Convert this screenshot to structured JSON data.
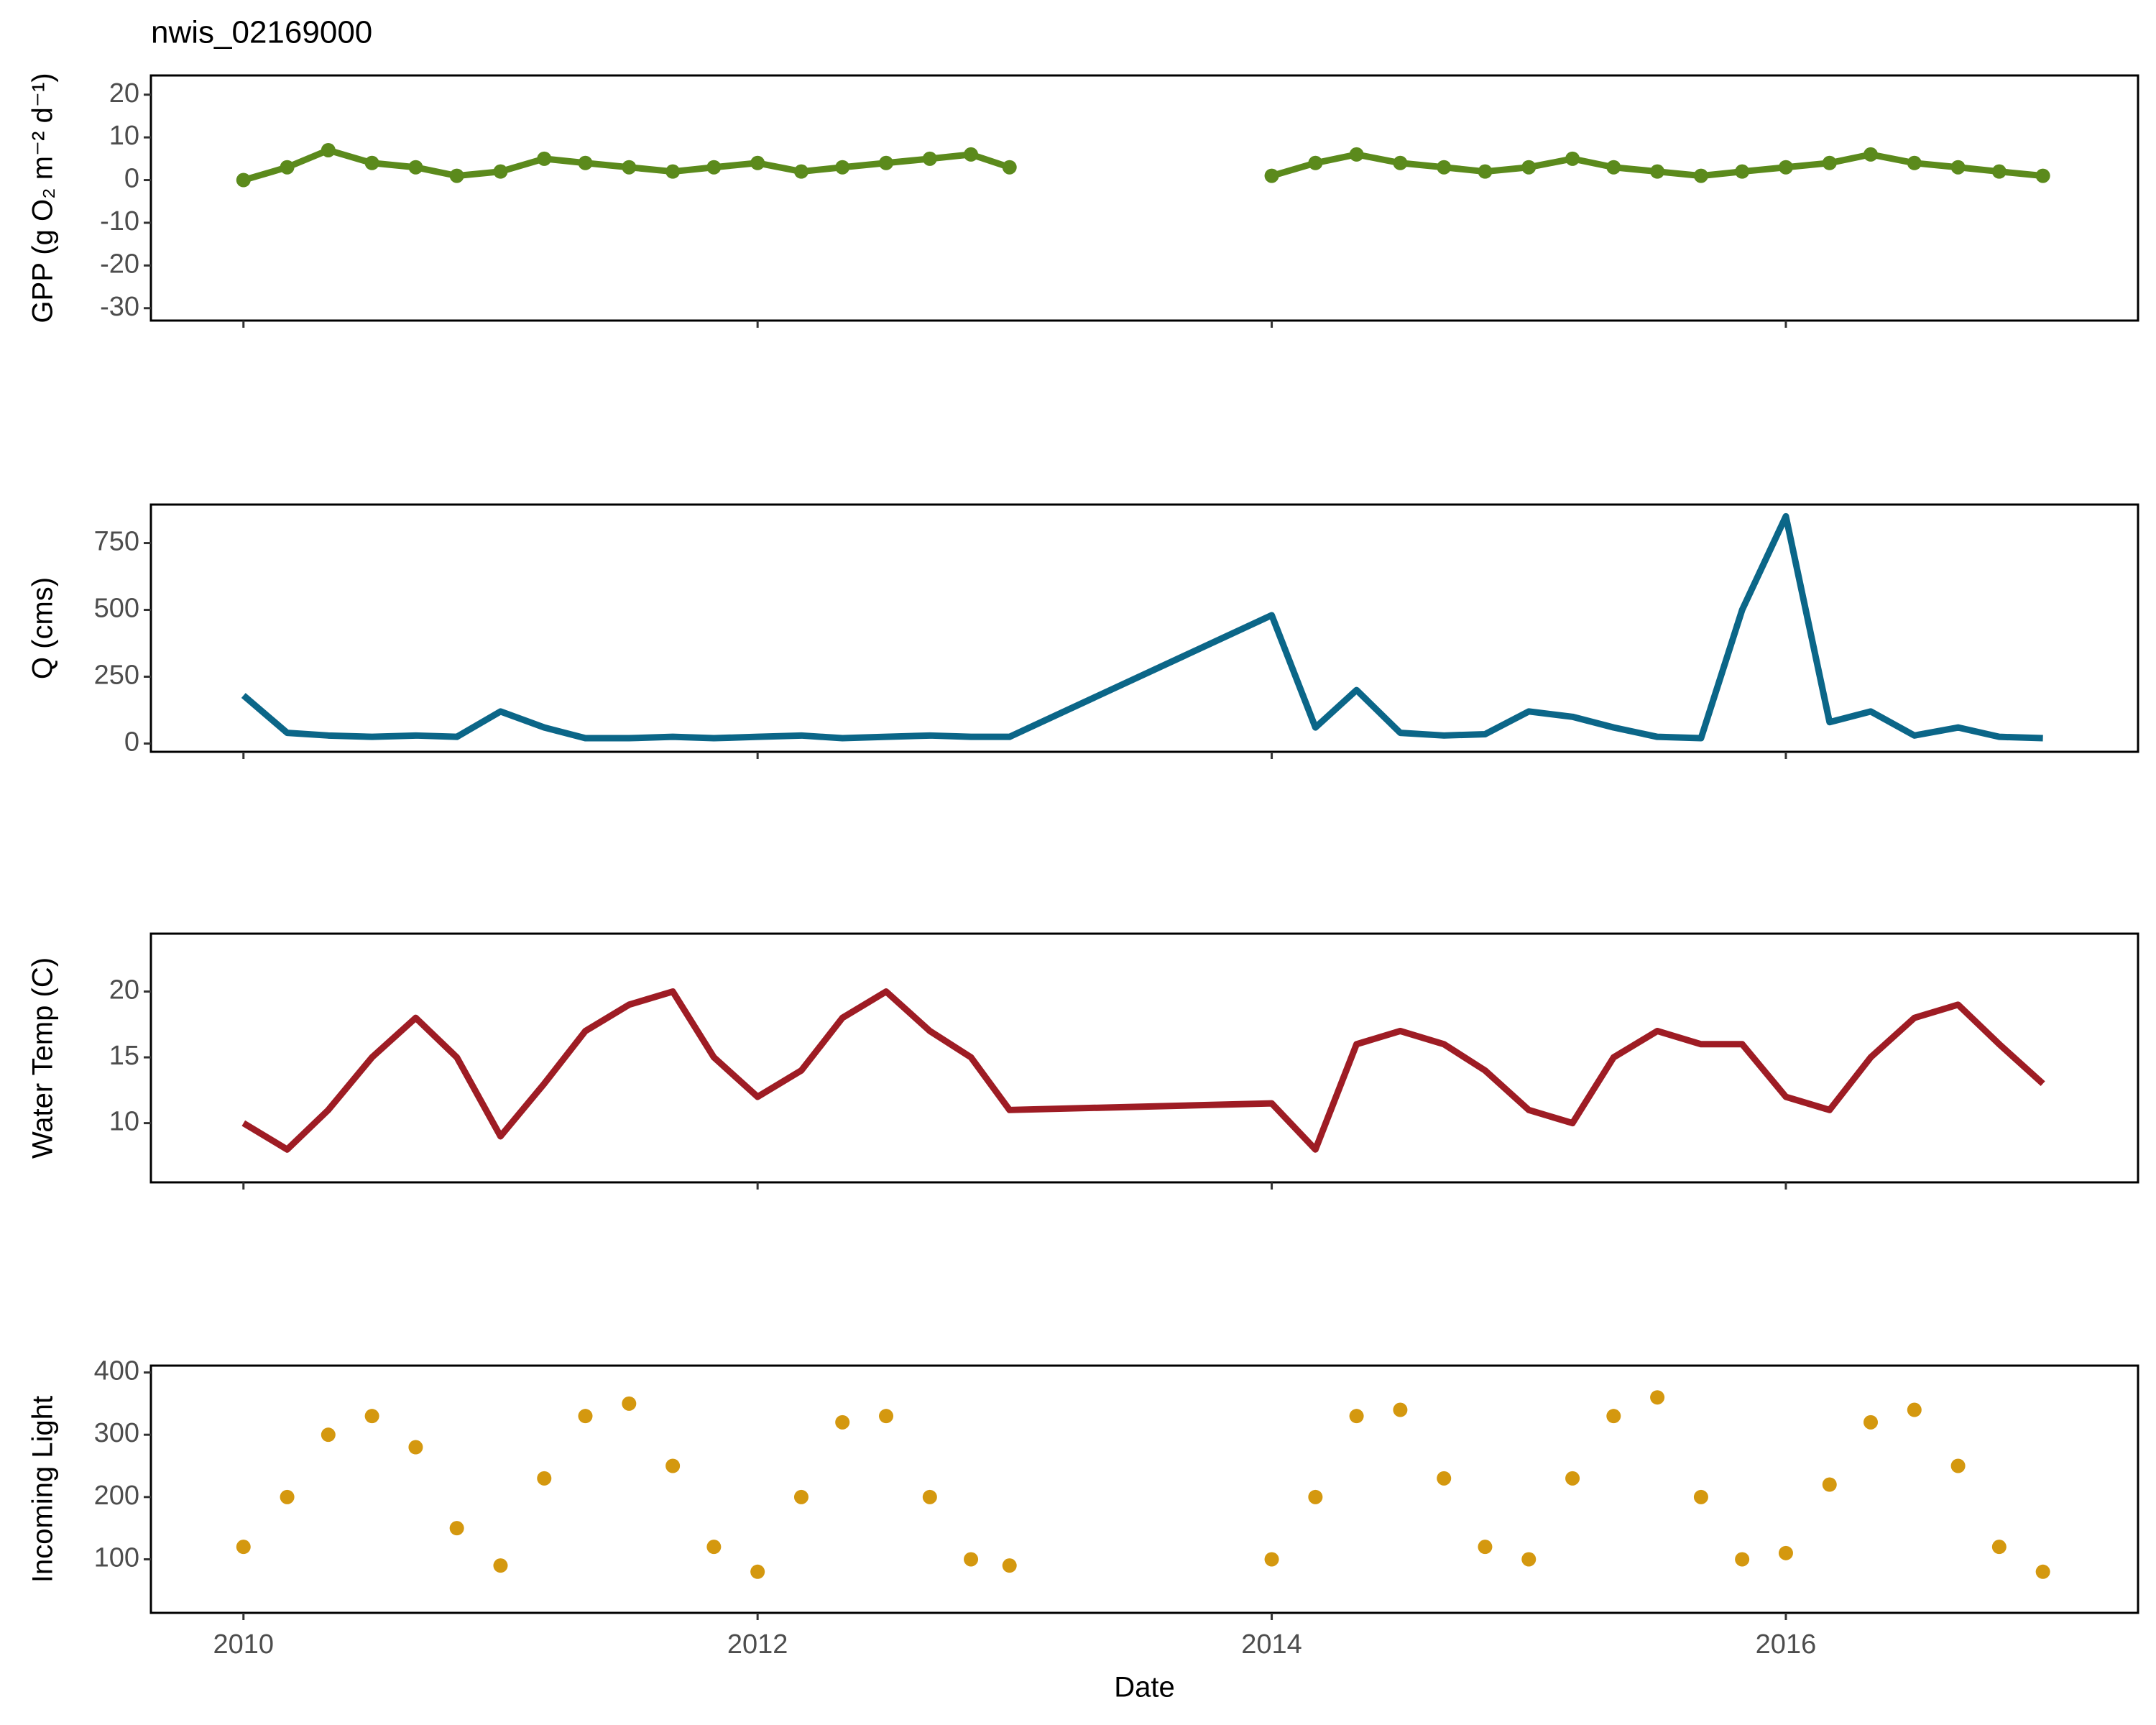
{
  "chart_data": [
    {
      "type": "line",
      "markers": true,
      "title": "nwis_02169000",
      "y_label": "GPP (g O₂ m⁻² d⁻¹)",
      "color": "#5b8a1c",
      "x": [
        2010.0,
        2010.17,
        2010.33,
        2010.5,
        2010.67,
        2010.83,
        2011.0,
        2011.17,
        2011.33,
        2011.5,
        2011.67,
        2011.83,
        2012.0,
        2012.17,
        2012.33,
        2012.5,
        2012.67,
        2012.83,
        2012.98,
        2013.5,
        2014.0,
        2014.17,
        2014.33,
        2014.5,
        2014.67,
        2014.83,
        2015.0,
        2015.17,
        2015.33,
        2015.5,
        2015.67,
        2015.83,
        2016.0,
        2016.17,
        2016.33,
        2016.5,
        2016.67,
        2016.83,
        2017.0
      ],
      "values": [
        0,
        3,
        7,
        4,
        3,
        1,
        2,
        5,
        4,
        3,
        2,
        3,
        4,
        2,
        3,
        4,
        5,
        6,
        3,
        null,
        1,
        4,
        6,
        4,
        3,
        2,
        3,
        5,
        3,
        2,
        1,
        2,
        3,
        4,
        6,
        4,
        3,
        2,
        1
      ],
      "xlim": [
        2009.64,
        2017.37
      ],
      "xticks": [
        2010,
        2012,
        2014,
        2016
      ],
      "ylim": [
        -32.9,
        24.5
      ],
      "yticks": [
        -30,
        -20,
        -10,
        0,
        10,
        20
      ]
    },
    {
      "type": "line",
      "y_label": "Q (cms)",
      "color": "#0b6688",
      "x": [
        2010.0,
        2010.17,
        2010.33,
        2010.5,
        2010.67,
        2010.83,
        2011.0,
        2011.17,
        2011.33,
        2011.5,
        2011.67,
        2011.83,
        2012.0,
        2012.17,
        2012.33,
        2012.5,
        2012.67,
        2012.83,
        2012.98,
        2014.0,
        2014.17,
        2014.33,
        2014.5,
        2014.67,
        2014.83,
        2015.0,
        2015.17,
        2015.33,
        2015.5,
        2015.67,
        2015.83,
        2016.0,
        2016.17,
        2016.33,
        2016.5,
        2016.67,
        2016.83,
        2017.0
      ],
      "values": [
        180,
        40,
        30,
        25,
        30,
        25,
        120,
        60,
        20,
        20,
        25,
        20,
        25,
        30,
        20,
        25,
        30,
        25,
        25,
        480,
        60,
        200,
        40,
        30,
        35,
        120,
        100,
        60,
        25,
        20,
        500,
        850,
        80,
        120,
        30,
        60,
        25,
        20
      ],
      "xlim": [
        2009.64,
        2017.37
      ],
      "xticks": [
        2010,
        2012,
        2014,
        2016
      ],
      "ylim": [
        -31,
        894
      ],
      "yticks": [
        0,
        250,
        500,
        750
      ]
    },
    {
      "type": "line",
      "y_label": "Water Temp (C)",
      "color": "#9e1c24",
      "x": [
        2010.0,
        2010.17,
        2010.33,
        2010.5,
        2010.67,
        2010.83,
        2011.0,
        2011.17,
        2011.33,
        2011.5,
        2011.67,
        2011.83,
        2012.0,
        2012.17,
        2012.33,
        2012.5,
        2012.67,
        2012.83,
        2012.98,
        2014.0,
        2014.17,
        2014.33,
        2014.5,
        2014.67,
        2014.83,
        2015.0,
        2015.17,
        2015.33,
        2015.5,
        2015.67,
        2015.83,
        2016.0,
        2016.17,
        2016.33,
        2016.5,
        2016.67,
        2016.83,
        2017.0
      ],
      "values": [
        10,
        8,
        11,
        15,
        18,
        15,
        9,
        13,
        17,
        19,
        20,
        15,
        12,
        14,
        18,
        20,
        17,
        15,
        11,
        11.5,
        8,
        16,
        17,
        16,
        14,
        11,
        10,
        15,
        17,
        16,
        16,
        12,
        11,
        15,
        18,
        19,
        16,
        13
      ],
      "xlim": [
        2009.64,
        2017.37
      ],
      "xticks": [
        2010,
        2012,
        2014,
        2016
      ],
      "ylim": [
        5.5,
        24.4
      ],
      "yticks": [
        10,
        15,
        20
      ]
    },
    {
      "type": "scatter",
      "y_label": "Incoming Light",
      "x_label": "Date",
      "color": "#d4980f",
      "x": [
        2010.0,
        2010.17,
        2010.33,
        2010.5,
        2010.67,
        2010.83,
        2011.0,
        2011.17,
        2011.33,
        2011.5,
        2011.67,
        2011.83,
        2012.0,
        2012.17,
        2012.33,
        2012.5,
        2012.67,
        2012.83,
        2012.98,
        2014.0,
        2014.17,
        2014.33,
        2014.5,
        2014.67,
        2014.83,
        2015.0,
        2015.17,
        2015.33,
        2015.5,
        2015.67,
        2015.83,
        2016.0,
        2016.17,
        2016.33,
        2016.5,
        2016.67,
        2016.83,
        2017.0
      ],
      "values": [
        120,
        200,
        300,
        330,
        280,
        150,
        90,
        230,
        330,
        350,
        250,
        120,
        80,
        200,
        320,
        330,
        200,
        100,
        90,
        100,
        200,
        330,
        340,
        230,
        120,
        100,
        230,
        330,
        360,
        200,
        100,
        110,
        220,
        320,
        340,
        250,
        120,
        80
      ],
      "xlim": [
        2009.64,
        2017.37
      ],
      "xticks": [
        2010,
        2012,
        2014,
        2016
      ],
      "ylim": [
        14,
        411
      ],
      "yticks": [
        100,
        200,
        300,
        400
      ]
    }
  ]
}
